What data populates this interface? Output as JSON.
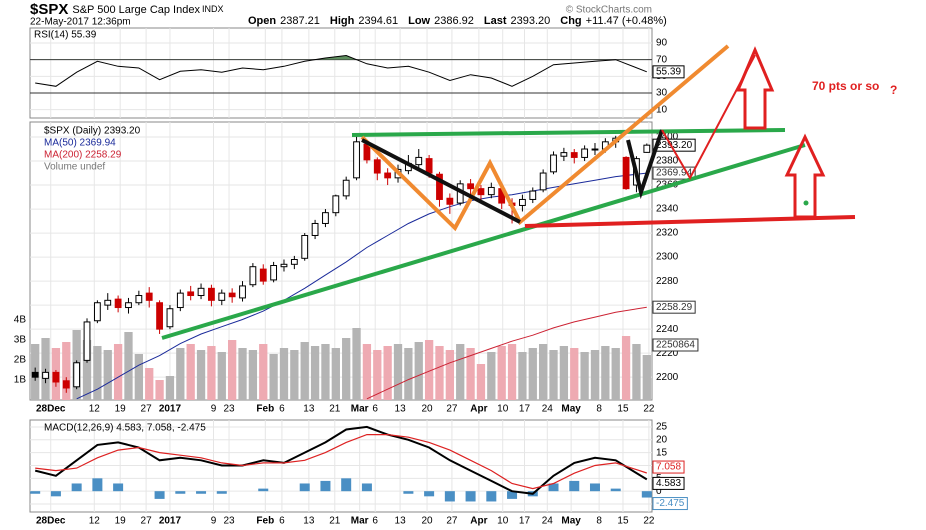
{
  "header": {
    "symbol": "$SPX",
    "name": "S&P 500 Large Cap Index",
    "exchange": "INDX",
    "date": "22-May-2017 12:36pm",
    "quote": [
      {
        "label": "Open",
        "value": "2387.21"
      },
      {
        "label": "High",
        "value": "2394.61"
      },
      {
        "label": "Low",
        "value": "2386.92"
      },
      {
        "label": "Last",
        "value": "2393.20"
      },
      {
        "label": "Chg",
        "value": "+11.47 (+0.48%)"
      }
    ],
    "credit": "© StockCharts.com"
  },
  "chart_data": [
    {
      "type": "line",
      "legend": "RSI(14) 55.39",
      "color": "#000000",
      "fill_color": "#5f8f5f",
      "x": [
        0,
        2,
        4,
        6,
        8,
        10,
        12,
        14,
        16,
        18,
        20,
        22,
        24,
        26,
        28,
        30,
        32,
        34,
        36,
        38,
        40,
        42,
        44,
        46,
        48,
        50,
        52,
        54,
        56,
        59
      ],
      "values": [
        42,
        38,
        55,
        68,
        62,
        60,
        46,
        56,
        58,
        55,
        60,
        58,
        62,
        68,
        72,
        75,
        65,
        60,
        62,
        55,
        45,
        52,
        48,
        38,
        50,
        64,
        66,
        68,
        70,
        55.39
      ],
      "ylim": [
        0,
        108
      ],
      "yticks": [
        90,
        70,
        50,
        30,
        10
      ],
      "overbought": 70,
      "oversold": 30
    },
    {
      "type": "candlestick",
      "legend": [
        "$SPX (Daily) 2393.20",
        "MA(50) 2369.94",
        "MA(200) 2258.29",
        "Volume undef"
      ],
      "open": [
        2204,
        2199,
        2204,
        2197,
        2192,
        2214,
        2247,
        2260,
        2265,
        2258,
        2262,
        2270,
        2262,
        2242,
        2258,
        2271,
        2268,
        2274,
        2264,
        2270,
        2266,
        2277,
        2290,
        2281,
        2292,
        2294,
        2299,
        2318,
        2328,
        2337,
        2351,
        2366,
        2394,
        2381,
        2370,
        2366,
        2372,
        2377,
        2382,
        2369,
        2349,
        2345,
        2361,
        2357,
        2352,
        2357,
        2345,
        2343,
        2348,
        2356,
        2371,
        2384,
        2387,
        2383,
        2390,
        2390,
        2396,
        2383,
        2360,
        2387.21
      ],
      "high": [
        2208,
        2207,
        2206,
        2200,
        2214,
        2249,
        2264,
        2270,
        2268,
        2266,
        2272,
        2275,
        2264,
        2260,
        2273,
        2276,
        2278,
        2277,
        2273,
        2274,
        2280,
        2295,
        2294,
        2296,
        2298,
        2301,
        2320,
        2331,
        2340,
        2352,
        2367,
        2401,
        2396,
        2383,
        2374,
        2377,
        2385,
        2390,
        2385,
        2371,
        2353,
        2364,
        2365,
        2360,
        2362,
        2359,
        2349,
        2352,
        2358,
        2373,
        2388,
        2391,
        2390,
        2393,
        2395,
        2399,
        2401,
        2384,
        2384,
        2394.61
      ],
      "low": [
        2197,
        2195,
        2192,
        2187,
        2190,
        2212,
        2245,
        2256,
        2254,
        2253,
        2260,
        2258,
        2236,
        2240,
        2255,
        2264,
        2265,
        2259,
        2260,
        2262,
        2263,
        2275,
        2277,
        2279,
        2288,
        2290,
        2297,
        2315,
        2325,
        2334,
        2348,
        2364,
        2378,
        2364,
        2360,
        2362,
        2369,
        2374,
        2366,
        2342,
        2336,
        2343,
        2352,
        2346,
        2349,
        2340,
        2328,
        2338,
        2345,
        2354,
        2369,
        2380,
        2378,
        2380,
        2385,
        2387,
        2391,
        2356,
        2354,
        2386.92
      ],
      "close": [
        2200,
        2204,
        2196,
        2191,
        2212,
        2246,
        2262,
        2264,
        2258,
        2262,
        2268,
        2264,
        2240,
        2257,
        2270,
        2268,
        2274,
        2264,
        2270,
        2267,
        2276,
        2292,
        2280,
        2293,
        2294,
        2298,
        2318,
        2328,
        2337,
        2351,
        2364,
        2396,
        2381,
        2370,
        2366,
        2373,
        2378,
        2383,
        2370,
        2348,
        2344,
        2361,
        2357,
        2352,
        2358,
        2345,
        2343,
        2348,
        2355,
        2370,
        2385,
        2387,
        2383,
        2390,
        2390,
        2396,
        2399,
        2357,
        2382,
        2393.2
      ],
      "last_label": "2393.20",
      "up_color": "#000000",
      "down_color": "#cc0000",
      "ylim": [
        2181,
        2412.5
      ],
      "yticks": [
        2400,
        2380,
        2360,
        2340,
        2320,
        2300,
        2280,
        2260,
        2240,
        2220,
        2200
      ],
      "xlim": [
        -0.5,
        59.5
      ],
      "xticks": [
        {
          "value": 1.5,
          "label": "28Dec"
        },
        {
          "value": 5.7,
          "label": "12"
        },
        {
          "value": 8.2,
          "label": "19"
        },
        {
          "value": 10.7,
          "label": "27"
        },
        {
          "value": 13.0,
          "label": "2017"
        },
        {
          "value": 17.2,
          "label": "9"
        },
        {
          "value": 18.7,
          "label": "23"
        },
        {
          "value": 22.2,
          "label": "Feb"
        },
        {
          "value": 23.8,
          "label": "6"
        },
        {
          "value": 26.4,
          "label": "13"
        },
        {
          "value": 28.9,
          "label": "21"
        },
        {
          "value": 31.3,
          "label": "Mar"
        },
        {
          "value": 32.8,
          "label": "6"
        },
        {
          "value": 35.2,
          "label": "13"
        },
        {
          "value": 37.8,
          "label": "20"
        },
        {
          "value": 40.2,
          "label": "27"
        },
        {
          "value": 42.8,
          "label": "Apr"
        },
        {
          "value": 45.1,
          "label": "10"
        },
        {
          "value": 47.2,
          "label": "17"
        },
        {
          "value": 49.4,
          "label": "24"
        },
        {
          "value": 51.7,
          "label": "May"
        },
        {
          "value": 54.4,
          "label": "8"
        },
        {
          "value": 56.7,
          "label": "15"
        },
        {
          "value": 59.2,
          "label": "22"
        }
      ],
      "series": [
        {
          "color": "#1a2a9a",
          "x": [
            0,
            2,
            4,
            6,
            8,
            10,
            12,
            14,
            16,
            18,
            20,
            22,
            24,
            26,
            28,
            30,
            32,
            34,
            36,
            38,
            40,
            42,
            44,
            46,
            48,
            50,
            52,
            54,
            56,
            59
          ],
          "values": [
            null,
            null,
            2182,
            2190,
            2200,
            2210,
            2218,
            2228,
            2236,
            2242,
            2248,
            2255,
            2264,
            2274,
            2285,
            2296,
            2308,
            2318,
            2328,
            2336,
            2342,
            2347,
            2350,
            2352,
            2355,
            2358,
            2361,
            2364,
            2367,
            2369.94
          ]
        },
        {
          "color": "#cc2233",
          "x": [
            0,
            2,
            4,
            6,
            8,
            10,
            12,
            14,
            16,
            18,
            20,
            22,
            24,
            26,
            28,
            30,
            32,
            34,
            36,
            38,
            40,
            42,
            44,
            46,
            48,
            50,
            52,
            54,
            56,
            59
          ],
          "values": [
            null,
            null,
            null,
            null,
            null,
            null,
            null,
            null,
            null,
            null,
            null,
            null,
            null,
            null,
            null,
            null,
            2182,
            2190,
            2198,
            2205,
            2212,
            2218,
            2224,
            2230,
            2235,
            2241,
            2246,
            2250,
            2254,
            2258.29
          ]
        }
      ],
      "volume": {
        "up_color": "#b4b4b4",
        "down_color": "#eeaab2",
        "values": [
          2.8,
          3.1,
          2.6,
          2.9,
          3.5,
          3.0,
          2.7,
          2.5,
          2.8,
          3.4,
          2.3,
          1.6,
          1.0,
          1.2,
          2.6,
          2.8,
          2.5,
          2.7,
          2.4,
          3.0,
          2.6,
          2.5,
          2.8,
          2.3,
          2.6,
          2.5,
          2.9,
          2.7,
          2.8,
          2.6,
          3.1,
          3.6,
          2.8,
          2.5,
          2.7,
          2.8,
          2.6,
          2.9,
          3.0,
          2.7,
          2.5,
          2.8,
          2.6,
          1.8,
          2.4,
          2.7,
          2.8,
          2.4,
          2.6,
          2.8,
          2.5,
          2.7,
          2.6,
          2.4,
          2.5,
          2.7,
          2.6,
          3.2,
          2.8,
          2.25
        ],
        "last_label": "2250864",
        "ylim": [
          0,
          13.9
        ],
        "yticks": [
          {
            "value": 4,
            "label": "4B"
          },
          {
            "value": 3,
            "label": "3B"
          },
          {
            "value": 2,
            "label": "2B"
          },
          {
            "value": 1,
            "label": "1B"
          }
        ]
      },
      "grid": true
    },
    {
      "type": "macd",
      "legend": "MACD(12,26,9) 4.583, 7.058, -2.475",
      "x": [
        0,
        2,
        4,
        6,
        8,
        10,
        12,
        14,
        16,
        18,
        20,
        22,
        24,
        26,
        28,
        30,
        32,
        34,
        36,
        38,
        40,
        42,
        44,
        46,
        48,
        50,
        52,
        54,
        56,
        59
      ],
      "series": [
        {
          "color": "#000000",
          "values": [
            8,
            6,
            12,
            18,
            19,
            17,
            12,
            13,
            12,
            10,
            10,
            12,
            11,
            15,
            19,
            24,
            25,
            22,
            20,
            17,
            12,
            8,
            4,
            0,
            -1,
            6,
            11,
            13,
            12,
            4.583
          ]
        },
        {
          "color": "#dd2222",
          "values": [
            9,
            8,
            9,
            13,
            16,
            17,
            15,
            14,
            13,
            11,
            10,
            11,
            11,
            12,
            15,
            19,
            22,
            22,
            21,
            19,
            16,
            12,
            8,
            3,
            1,
            3,
            7,
            10,
            11,
            7.058
          ]
        }
      ],
      "histogram": {
        "color": "#4a8fc4",
        "values": [
          -1,
          -2,
          3,
          5,
          3,
          0,
          -3,
          -1,
          -1,
          -1,
          0,
          1,
          0,
          3,
          4,
          5,
          3,
          0,
          -1,
          -2,
          -4,
          -4,
          -4,
          -3,
          -2,
          3,
          4,
          3,
          1,
          -2.475
        ]
      },
      "ylim": [
        -8.1,
        27.7
      ],
      "yticks": [
        25,
        20,
        15,
        10,
        5,
        0,
        -5
      ]
    }
  ],
  "annotations": [
    "70 pts or so",
    "?"
  ]
}
